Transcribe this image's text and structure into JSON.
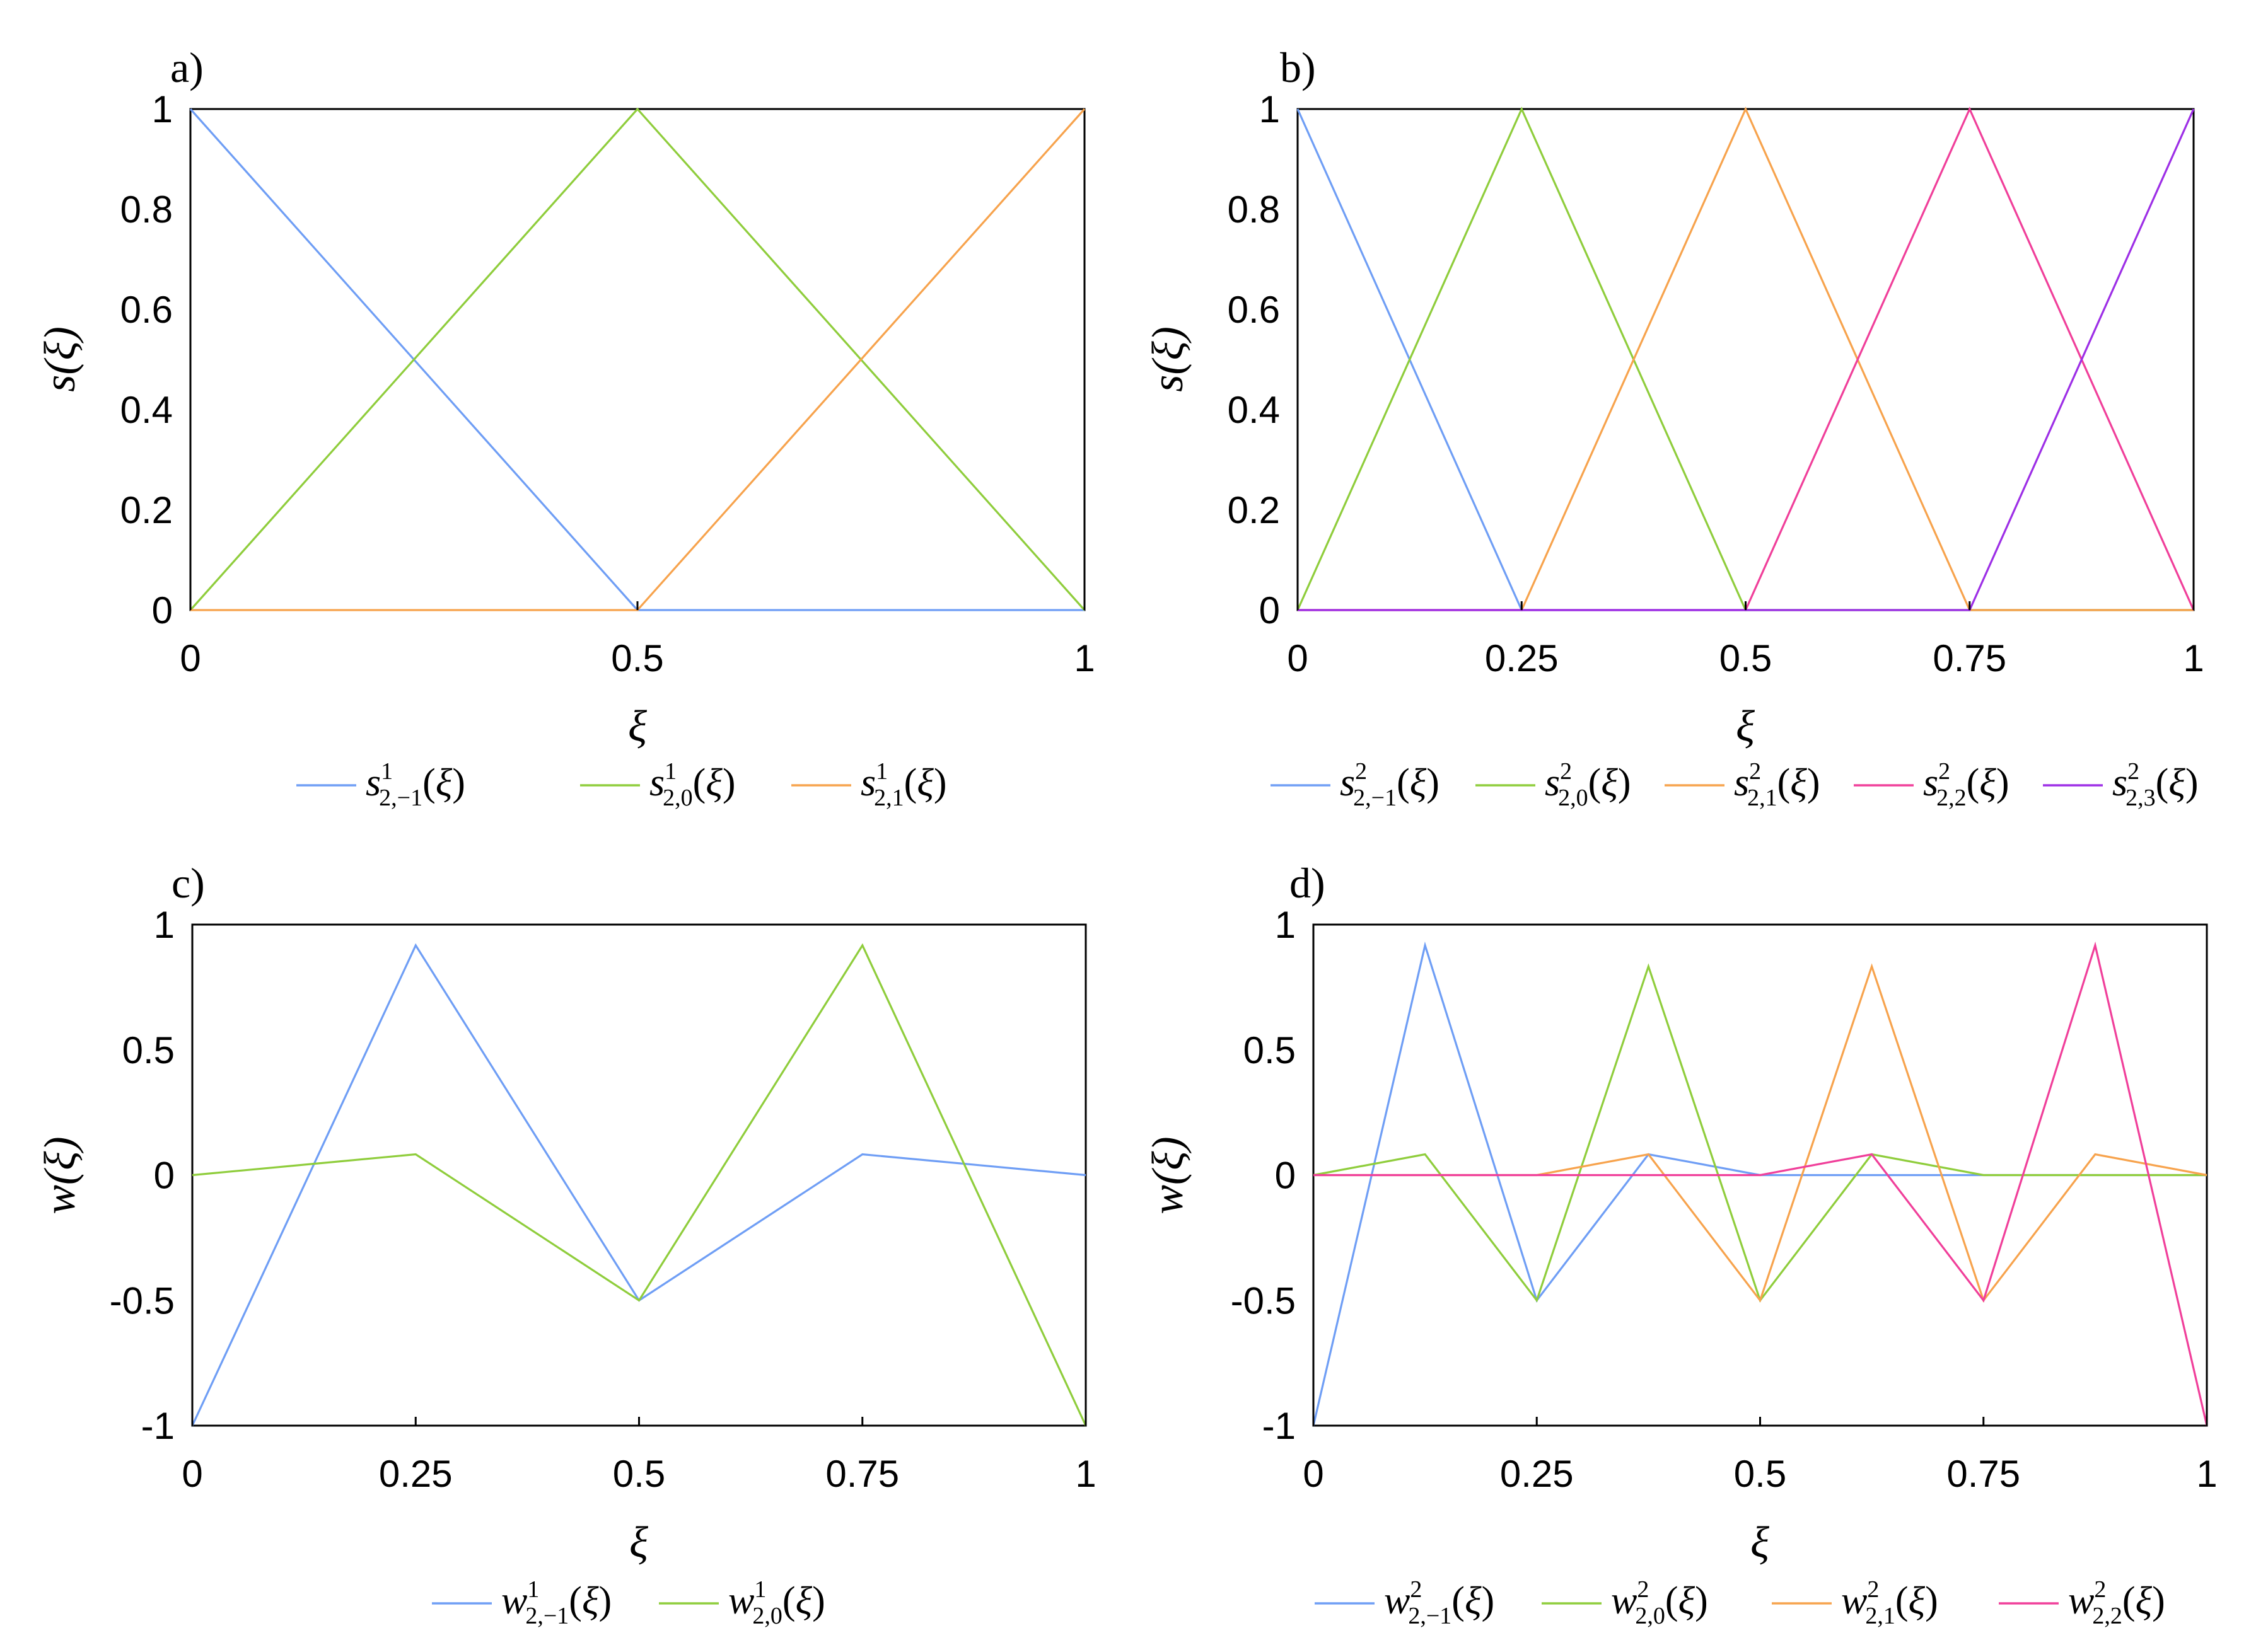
{
  "colors": {
    "blue": "#6f9ef5",
    "green": "#8fcd3c",
    "orange": "#f7a34d",
    "pink": "#f03f9a",
    "purple": "#9d2fe6"
  },
  "chart_data": [
    {
      "type": "line",
      "panel_letter": "a)",
      "xlabel": "ξ",
      "ylabel": "s(ξ)",
      "xlim": [
        0,
        1
      ],
      "ylim": [
        0,
        1
      ],
      "xticks": [
        0,
        0.5,
        1
      ],
      "xtick_labels": [
        "0",
        "0.5",
        "1"
      ],
      "yticks": [
        0,
        0.2,
        0.4,
        0.6,
        0.8,
        1
      ],
      "ytick_labels": [
        "0",
        "0.2",
        "0.4",
        "0.6",
        "0.8",
        "1"
      ],
      "grid": false,
      "legend_position": "bottom",
      "series": [
        {
          "name": "s^1_{2,-1}(ξ)",
          "base": "s",
          "sup": "1",
          "sub": "2,−1",
          "color": "blue",
          "x": [
            0,
            0.5,
            1
          ],
          "y": [
            1,
            0,
            0
          ]
        },
        {
          "name": "s^1_{2,0}(ξ)",
          "base": "s",
          "sup": "1",
          "sub": "2,0",
          "color": "green",
          "x": [
            0,
            0.5,
            1
          ],
          "y": [
            0,
            1,
            0
          ]
        },
        {
          "name": "s^1_{2,1}(ξ)",
          "base": "s",
          "sup": "1",
          "sub": "2,1",
          "color": "orange",
          "x": [
            0,
            0.5,
            1
          ],
          "y": [
            0,
            0,
            1
          ]
        }
      ]
    },
    {
      "type": "line",
      "panel_letter": "b)",
      "xlabel": "ξ",
      "ylabel": "s(ξ)",
      "xlim": [
        0,
        1
      ],
      "ylim": [
        0,
        1
      ],
      "xticks": [
        0,
        0.25,
        0.5,
        0.75,
        1
      ],
      "xtick_labels": [
        "0",
        "0.25",
        "0.5",
        "0.75",
        "1"
      ],
      "yticks": [
        0,
        0.2,
        0.4,
        0.6,
        0.8,
        1
      ],
      "ytick_labels": [
        "0",
        "0.2",
        "0.4",
        "0.6",
        "0.8",
        "1"
      ],
      "grid": false,
      "legend_position": "bottom",
      "series": [
        {
          "name": "s^2_{2,-1}(ξ)",
          "base": "s",
          "sup": "2",
          "sub": "2,−1",
          "color": "blue",
          "x": [
            0,
            0.25,
            1
          ],
          "y": [
            1,
            0,
            0
          ]
        },
        {
          "name": "s^2_{2,0}(ξ)",
          "base": "s",
          "sup": "2",
          "sub": "2,0",
          "color": "green",
          "x": [
            0,
            0.25,
            0.5,
            1
          ],
          "y": [
            0,
            1,
            0,
            0
          ]
        },
        {
          "name": "s^2_{2,1}(ξ)",
          "base": "s",
          "sup": "2",
          "sub": "2,1",
          "color": "orange",
          "x": [
            0,
            0.25,
            0.5,
            0.75,
            1
          ],
          "y": [
            0,
            0,
            1,
            0,
            0
          ]
        },
        {
          "name": "s^2_{2,2}(ξ)",
          "base": "s",
          "sup": "2",
          "sub": "2,2",
          "color": "pink",
          "x": [
            0,
            0.5,
            0.75,
            1
          ],
          "y": [
            0,
            0,
            1,
            0
          ]
        },
        {
          "name": "s^2_{2,3}(ξ)",
          "base": "s",
          "sup": "2",
          "sub": "2,3",
          "color": "purple",
          "x": [
            0,
            0.75,
            1
          ],
          "y": [
            0,
            0,
            1
          ]
        }
      ]
    },
    {
      "type": "line",
      "panel_letter": "c)",
      "xlabel": "ξ",
      "ylabel": "w(ξ)",
      "xlim": [
        0,
        1
      ],
      "ylim": [
        -1,
        1
      ],
      "xticks": [
        0,
        0.25,
        0.5,
        0.75,
        1
      ],
      "xtick_labels": [
        "0",
        "0.25",
        "0.5",
        "0.75",
        "1"
      ],
      "yticks": [
        -1,
        -0.5,
        0,
        0.5,
        1
      ],
      "ytick_labels": [
        "-1",
        "-0.5",
        "0",
        "0.5",
        "1"
      ],
      "grid": false,
      "legend_position": "bottom",
      "series": [
        {
          "name": "w^1_{2,-1}(ξ)",
          "base": "w",
          "sup": "1",
          "sub": "2,−1",
          "color": "blue",
          "x": [
            0,
            0.25,
            0.5,
            0.75,
            1
          ],
          "y": [
            -1,
            0.917,
            -0.5,
            0.083,
            0
          ]
        },
        {
          "name": "w^1_{2,0}(ξ)",
          "base": "w",
          "sup": "1",
          "sub": "2,0",
          "color": "green",
          "x": [
            0,
            0.25,
            0.5,
            0.75,
            1
          ],
          "y": [
            0,
            0.083,
            -0.5,
            0.917,
            -1
          ]
        }
      ]
    },
    {
      "type": "line",
      "panel_letter": "d)",
      "xlabel": "ξ",
      "ylabel": "w(ξ)",
      "xlim": [
        0,
        1
      ],
      "ylim": [
        -1,
        1
      ],
      "xticks": [
        0,
        0.25,
        0.5,
        0.75,
        1
      ],
      "xtick_labels": [
        "0",
        "0.25",
        "0.5",
        "0.75",
        "1"
      ],
      "yticks": [
        -1,
        -0.5,
        0,
        0.5,
        1
      ],
      "ytick_labels": [
        "-1",
        "-0.5",
        "0",
        "0.5",
        "1"
      ],
      "grid": false,
      "legend_position": "bottom",
      "series": [
        {
          "name": "w^2_{2,-1}(ξ)",
          "base": "w",
          "sup": "2",
          "sub": "2,−1",
          "color": "blue",
          "x": [
            0,
            0.125,
            0.25,
            0.375,
            0.5,
            1
          ],
          "y": [
            -1,
            0.917,
            -0.5,
            0.083,
            0,
            0
          ]
        },
        {
          "name": "w^2_{2,0}(ξ)",
          "base": "w",
          "sup": "2",
          "sub": "2,0",
          "color": "green",
          "x": [
            0,
            0.125,
            0.25,
            0.375,
            0.5,
            0.625,
            0.75,
            1
          ],
          "y": [
            0,
            0.083,
            -0.5,
            0.833,
            -0.5,
            0.083,
            0,
            0
          ]
        },
        {
          "name": "w^2_{2,1}(ξ)",
          "base": "w",
          "sup": "2",
          "sub": "2,1",
          "color": "orange",
          "x": [
            0,
            0.25,
            0.375,
            0.5,
            0.625,
            0.75,
            0.875,
            1
          ],
          "y": [
            0,
            0,
            0.083,
            -0.5,
            0.833,
            -0.5,
            0.083,
            0
          ]
        },
        {
          "name": "w^2_{2,2}(ξ)",
          "base": "w",
          "sup": "2",
          "sub": "2,2",
          "color": "pink",
          "x": [
            0,
            0.5,
            0.625,
            0.75,
            0.875,
            1
          ],
          "y": [
            0,
            0,
            0.083,
            -0.5,
            0.917,
            -1
          ]
        }
      ]
    }
  ]
}
